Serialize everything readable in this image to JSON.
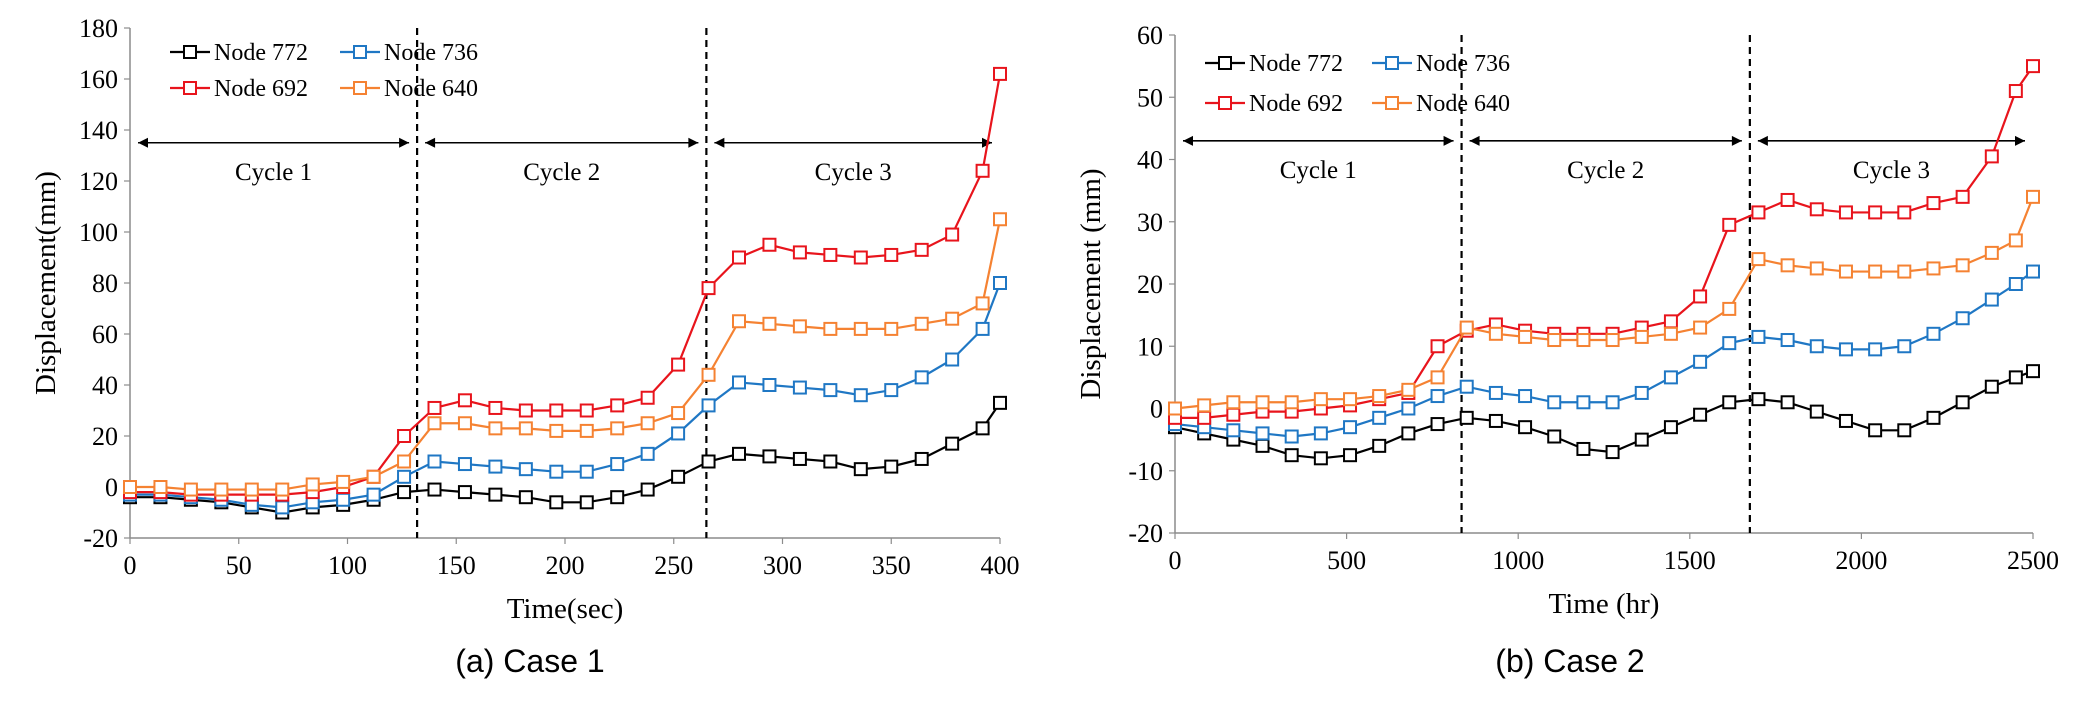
{
  "chart_data": [
    {
      "type": "line",
      "caption": "(a) Case 1",
      "xlabel": "Time(sec)",
      "ylabel": "Displacement(mm)",
      "xlim": [
        0,
        400
      ],
      "ylim": [
        -20,
        180
      ],
      "xticks": [
        0,
        50,
        100,
        150,
        200,
        250,
        300,
        350,
        400
      ],
      "yticks": [
        -20,
        0,
        20,
        40,
        60,
        80,
        100,
        120,
        140,
        160,
        180
      ],
      "x": [
        0,
        14,
        28,
        42,
        56,
        70,
        84,
        98,
        112,
        126,
        140,
        154,
        168,
        182,
        196,
        210,
        224,
        238,
        252,
        266,
        280,
        294,
        308,
        322,
        336,
        350,
        364,
        378,
        392,
        400
      ],
      "series": [
        {
          "name": "Node 772",
          "color": "#000000",
          "values": [
            -4,
            -4,
            -5,
            -6,
            -8,
            -10,
            -8,
            -7,
            -5,
            -2,
            -1,
            -2,
            -3,
            -4,
            -6,
            -6,
            -4,
            -1,
            4,
            10,
            13,
            12,
            11,
            10,
            7,
            8,
            11,
            17,
            23,
            33
          ]
        },
        {
          "name": "Node 736",
          "color": "#1F77C4",
          "values": [
            -3,
            -3,
            -4,
            -5,
            -7,
            -8,
            -6,
            -5,
            -3,
            4,
            10,
            9,
            8,
            7,
            6,
            6,
            9,
            13,
            21,
            32,
            41,
            40,
            39,
            38,
            36,
            38,
            43,
            50,
            62,
            80
          ]
        },
        {
          "name": "Node 692",
          "color": "#E8141C",
          "values": [
            -2,
            -2,
            -3,
            -3,
            -3,
            -3,
            -2,
            0,
            4,
            20,
            31,
            34,
            31,
            30,
            30,
            30,
            32,
            35,
            48,
            78,
            90,
            95,
            92,
            91,
            90,
            91,
            93,
            99,
            124,
            162
          ]
        },
        {
          "name": "Node 640",
          "color": "#F58232",
          "values": [
            0,
            0,
            -1,
            -1,
            -1,
            -1,
            1,
            2,
            4,
            10,
            25,
            25,
            23,
            23,
            22,
            22,
            23,
            25,
            29,
            44,
            65,
            64,
            63,
            62,
            62,
            62,
            64,
            66,
            72,
            105
          ]
        }
      ],
      "legend": "top-left",
      "dividers": [
        132,
        265
      ],
      "cycles": [
        {
          "label": "Cycle 1",
          "from": 0,
          "to": 132
        },
        {
          "label": "Cycle 2",
          "from": 132,
          "to": 265
        },
        {
          "label": "Cycle 3",
          "from": 265,
          "to": 400
        }
      ],
      "cycle_y": 135,
      "cycle_label_y": 124
    },
    {
      "type": "line",
      "caption": "(b) Case 2",
      "xlabel": "Time (hr)",
      "ylabel": "Displacement (mm)",
      "xlim": [
        0,
        2500
      ],
      "ylim": [
        -20,
        60
      ],
      "xticks": [
        0,
        500,
        1000,
        1500,
        2000,
        2500
      ],
      "yticks": [
        -20,
        -10,
        0,
        10,
        20,
        30,
        40,
        50,
        60
      ],
      "x": [
        0,
        85,
        170,
        255,
        340,
        425,
        510,
        595,
        680,
        765,
        850,
        935,
        1020,
        1105,
        1190,
        1275,
        1360,
        1445,
        1530,
        1615,
        1700,
        1785,
        1870,
        1955,
        2040,
        2125,
        2210,
        2295,
        2380,
        2450,
        2500
      ],
      "series": [
        {
          "name": "Node 772",
          "color": "#000000",
          "values": [
            -3,
            -4,
            -5,
            -6,
            -7.5,
            -8,
            -7.5,
            -6,
            -4,
            -2.5,
            -1.5,
            -2,
            -3,
            -4.5,
            -6.5,
            -7,
            -5,
            -3,
            -1,
            1,
            1.5,
            1,
            -0.5,
            -2,
            -3.5,
            -3.5,
            -1.5,
            1,
            3.5,
            5,
            6
          ]
        },
        {
          "name": "Node 736",
          "color": "#1F77C4",
          "values": [
            -2.5,
            -3,
            -3.5,
            -4,
            -4.5,
            -4,
            -3,
            -1.5,
            0,
            2,
            3.5,
            2.5,
            2,
            1,
            1,
            1,
            2.5,
            5,
            7.5,
            10.5,
            11.5,
            11,
            10,
            9.5,
            9.5,
            10,
            12,
            14.5,
            17.5,
            20,
            22
          ]
        },
        {
          "name": "Node 692",
          "color": "#E8141C",
          "values": [
            -1.5,
            -1.5,
            -1,
            -0.5,
            -0.5,
            0,
            0.5,
            1.5,
            2.5,
            10,
            12.5,
            13.5,
            12.5,
            12,
            12,
            12,
            13,
            14,
            18,
            29.5,
            31.5,
            33.5,
            32,
            31.5,
            31.5,
            31.5,
            33,
            34,
            40.5,
            51,
            55
          ]
        },
        {
          "name": "Node 640",
          "color": "#F58232",
          "values": [
            0,
            0.5,
            1,
            1,
            1,
            1.5,
            1.5,
            2,
            3,
            5,
            13,
            12,
            11.5,
            11,
            11,
            11,
            11.5,
            12,
            13,
            16,
            24,
            23,
            22.5,
            22,
            22,
            22,
            22.5,
            23,
            25,
            27,
            34
          ]
        }
      ],
      "legend": "top-left",
      "dividers": [
        835,
        1675
      ],
      "cycles": [
        {
          "label": "Cycle 1",
          "from": 0,
          "to": 835
        },
        {
          "label": "Cycle 2",
          "from": 835,
          "to": 1675
        },
        {
          "label": "Cycle 3",
          "from": 1675,
          "to": 2500
        }
      ],
      "cycle_y": 43,
      "cycle_label_y": 38.5
    }
  ]
}
